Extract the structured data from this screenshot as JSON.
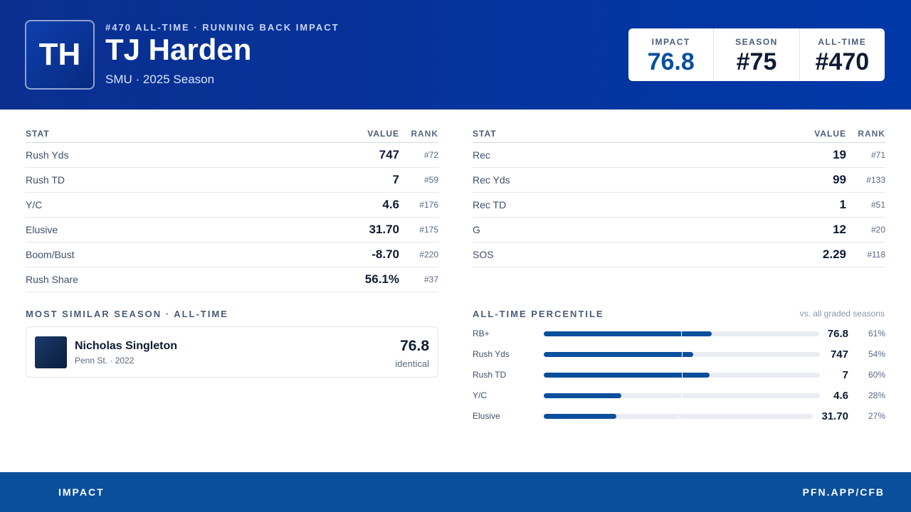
{
  "header": {
    "eyebrow": "#470 ALL-TIME · RUNNING BACK IMPACT",
    "initials": "TH",
    "name": "TJ Harden",
    "subtitle": "SMU · 2025 Season",
    "badges": [
      {
        "label": "IMPACT",
        "value": "76.8"
      },
      {
        "label": "SEASON",
        "value": "#75"
      },
      {
        "label": "ALL-TIME",
        "value": "#470"
      }
    ]
  },
  "tables": [
    {
      "columns": [
        "STAT",
        "VALUE",
        "RANK"
      ],
      "rows": [
        [
          "Rush Yds",
          "747",
          "#72"
        ],
        [
          "Rush TD",
          "7",
          "#59"
        ],
        [
          "Y/C",
          "4.6",
          "#176"
        ],
        [
          "Elusive",
          "31.70",
          "#175"
        ],
        [
          "Boom/Bust",
          "-8.70",
          "#220"
        ],
        [
          "Rush Share",
          "56.1%",
          "#37"
        ]
      ]
    },
    {
      "columns": [
        "STAT",
        "VALUE",
        "RANK"
      ],
      "rows": [
        [
          "Rec",
          "19",
          "#71"
        ],
        [
          "Rec Yds",
          "99",
          "#133"
        ],
        [
          "Rec TD",
          "1",
          "#51"
        ],
        [
          "G",
          "12",
          "#20"
        ],
        [
          "SOS",
          "2.29",
          "#118"
        ]
      ]
    }
  ],
  "similar": {
    "title": "MOST SIMILAR SEASON · ALL-TIME",
    "name": "Nicholas Singleton",
    "detail": "Penn St. · 2022",
    "score": "76.8",
    "note": "identical"
  },
  "percentiles": {
    "title": "ALL-TIME PERCENTILE",
    "note": "vs. all graded seasons",
    "rows": [
      {
        "stat": "RB+",
        "value": "76.8",
        "percentile": 61,
        "percentile_label": "61%"
      },
      {
        "stat": "Rush Yds",
        "value": "747",
        "percentile": 54,
        "percentile_label": "54%"
      },
      {
        "stat": "Rush TD",
        "value": "7",
        "percentile": 60,
        "percentile_label": "60%"
      },
      {
        "stat": "Y/C",
        "value": "4.6",
        "percentile": 28,
        "percentile_label": "28%"
      },
      {
        "stat": "Elusive",
        "value": "31.70",
        "percentile": 27,
        "percentile_label": "27%"
      }
    ]
  },
  "footer": {
    "left": "IMPACT",
    "right": "PFN.APP/CFB"
  }
}
